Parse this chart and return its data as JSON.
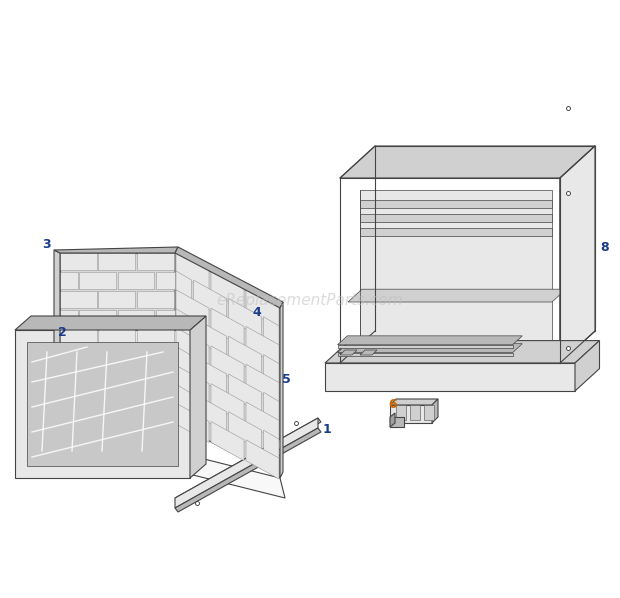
{
  "background_color": "#ffffff",
  "watermark": "eReplacementParts.com",
  "watermark_color": "#c0c0c0",
  "watermark_alpha": 0.55,
  "line_color": "#444444",
  "fill_white": "#f8f8f8",
  "fill_light": "#e8e8e8",
  "fill_mid": "#d0d0d0",
  "fill_dark": "#b8b8b8",
  "fill_darker": "#a0a0a0",
  "fill_brick_bg": "#d8d8d8",
  "fill_brick_face": "#e8e8e8",
  "fill_glass": "#c8c8c8",
  "label_color": "#1a3a8a",
  "label_color2": "#cc6600",
  "label_fontsize": 9,
  "watermark_fontsize": 11
}
